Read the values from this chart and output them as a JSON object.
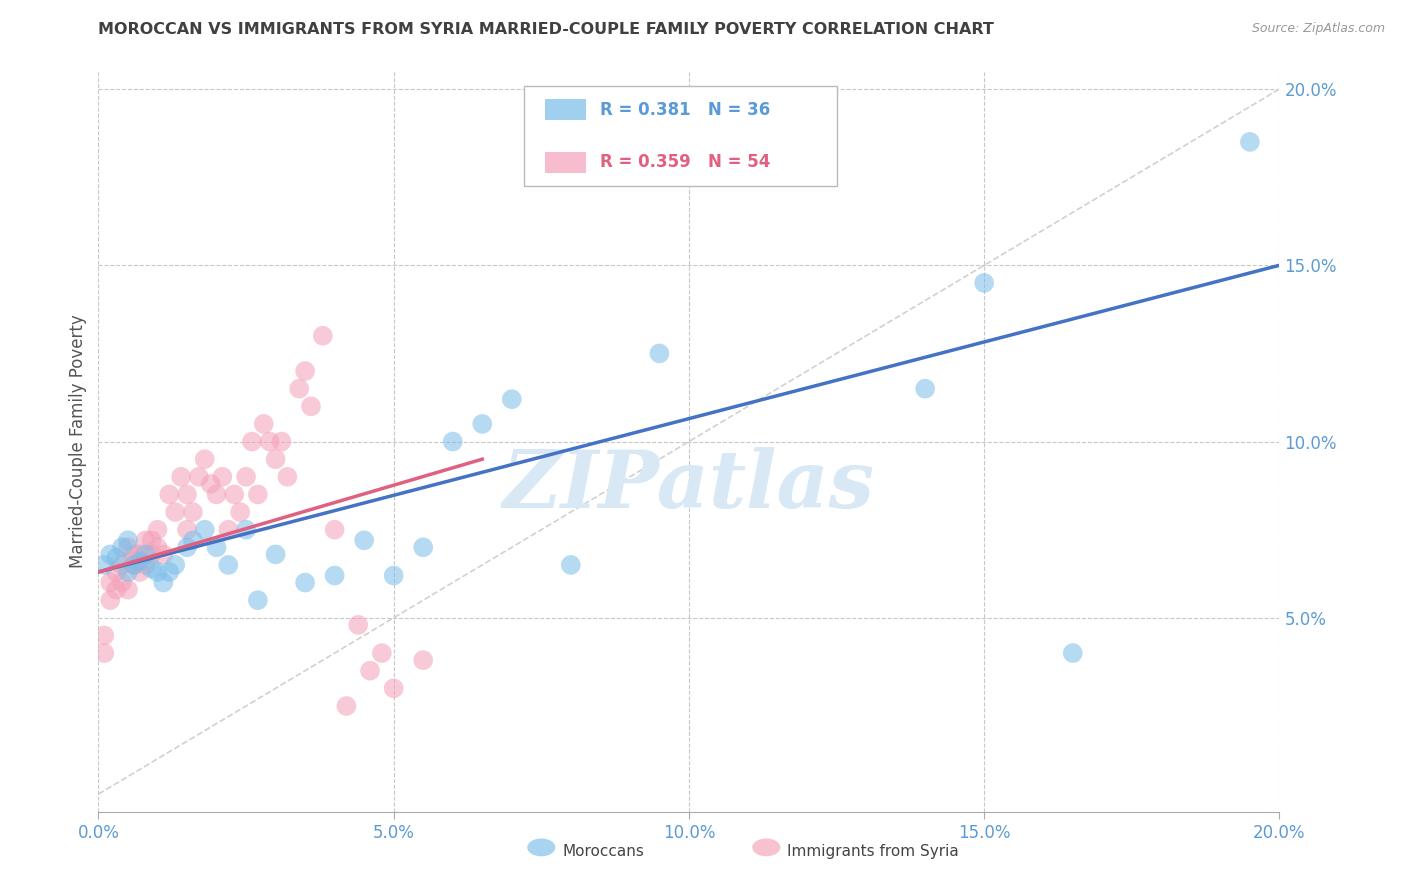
{
  "title": "MOROCCAN VS IMMIGRANTS FROM SYRIA MARRIED-COUPLE FAMILY POVERTY CORRELATION CHART",
  "source": "Source: ZipAtlas.com",
  "ylabel": "Married-Couple Family Poverty",
  "xlim": [
    0,
    0.2
  ],
  "ylim": [
    -0.005,
    0.205
  ],
  "xticks": [
    0.0,
    0.05,
    0.1,
    0.15,
    0.2
  ],
  "yticks": [
    0.05,
    0.1,
    0.15,
    0.2
  ],
  "xtick_labels": [
    "0.0%",
    "5.0%",
    "10.0%",
    "15.0%",
    "20.0%"
  ],
  "ytick_labels": [
    "5.0%",
    "10.0%",
    "15.0%",
    "20.0%"
  ],
  "blue_label": "Moroccans",
  "pink_label": "Immigrants from Syria",
  "blue_R": "0.381",
  "blue_N": "36",
  "pink_R": "0.359",
  "pink_N": "54",
  "blue_color": "#7abde8",
  "pink_color": "#f4a0b8",
  "watermark": "ZIPatlas",
  "watermark_color": "#d8e8f5",
  "grid_color": "#c8c8c8",
  "title_color": "#404040",
  "axis_label_color": "#555555",
  "tick_label_color": "#5b9bd5",
  "diag_color": "#cccccc",
  "blue_trend_color": "#4472c4",
  "pink_trend_color": "#e06080",
  "blue_scatter_x": [
    0.001,
    0.002,
    0.003,
    0.004,
    0.005,
    0.005,
    0.006,
    0.007,
    0.008,
    0.009,
    0.01,
    0.011,
    0.012,
    0.013,
    0.015,
    0.016,
    0.018,
    0.02,
    0.022,
    0.025,
    0.027,
    0.03,
    0.035,
    0.04,
    0.045,
    0.05,
    0.055,
    0.06,
    0.065,
    0.07,
    0.08,
    0.095,
    0.14,
    0.15,
    0.165,
    0.195
  ],
  "blue_scatter_y": [
    0.065,
    0.068,
    0.067,
    0.07,
    0.063,
    0.072,
    0.065,
    0.066,
    0.068,
    0.064,
    0.063,
    0.06,
    0.063,
    0.065,
    0.07,
    0.072,
    0.075,
    0.07,
    0.065,
    0.075,
    0.055,
    0.068,
    0.06,
    0.062,
    0.072,
    0.062,
    0.07,
    0.1,
    0.105,
    0.112,
    0.065,
    0.125,
    0.115,
    0.145,
    0.04,
    0.185
  ],
  "pink_scatter_x": [
    0.001,
    0.001,
    0.002,
    0.002,
    0.003,
    0.003,
    0.004,
    0.004,
    0.005,
    0.005,
    0.006,
    0.006,
    0.007,
    0.007,
    0.008,
    0.008,
    0.009,
    0.009,
    0.01,
    0.01,
    0.011,
    0.012,
    0.013,
    0.014,
    0.015,
    0.015,
    0.016,
    0.017,
    0.018,
    0.019,
    0.02,
    0.021,
    0.022,
    0.023,
    0.024,
    0.025,
    0.026,
    0.027,
    0.028,
    0.029,
    0.03,
    0.031,
    0.032,
    0.034,
    0.035,
    0.036,
    0.038,
    0.04,
    0.042,
    0.044,
    0.046,
    0.048,
    0.05,
    0.055
  ],
  "pink_scatter_y": [
    0.04,
    0.045,
    0.055,
    0.06,
    0.058,
    0.063,
    0.06,
    0.065,
    0.058,
    0.07,
    0.065,
    0.068,
    0.063,
    0.068,
    0.065,
    0.072,
    0.068,
    0.072,
    0.07,
    0.075,
    0.068,
    0.085,
    0.08,
    0.09,
    0.075,
    0.085,
    0.08,
    0.09,
    0.095,
    0.088,
    0.085,
    0.09,
    0.075,
    0.085,
    0.08,
    0.09,
    0.1,
    0.085,
    0.105,
    0.1,
    0.095,
    0.1,
    0.09,
    0.115,
    0.12,
    0.11,
    0.13,
    0.075,
    0.025,
    0.048,
    0.035,
    0.04,
    0.03,
    0.038
  ],
  "blue_trend_x": [
    0.0,
    0.2
  ],
  "blue_trend_y": [
    0.063,
    0.15
  ],
  "pink_trend_x": [
    0.0,
    0.065
  ],
  "pink_trend_y": [
    0.063,
    0.095
  ]
}
